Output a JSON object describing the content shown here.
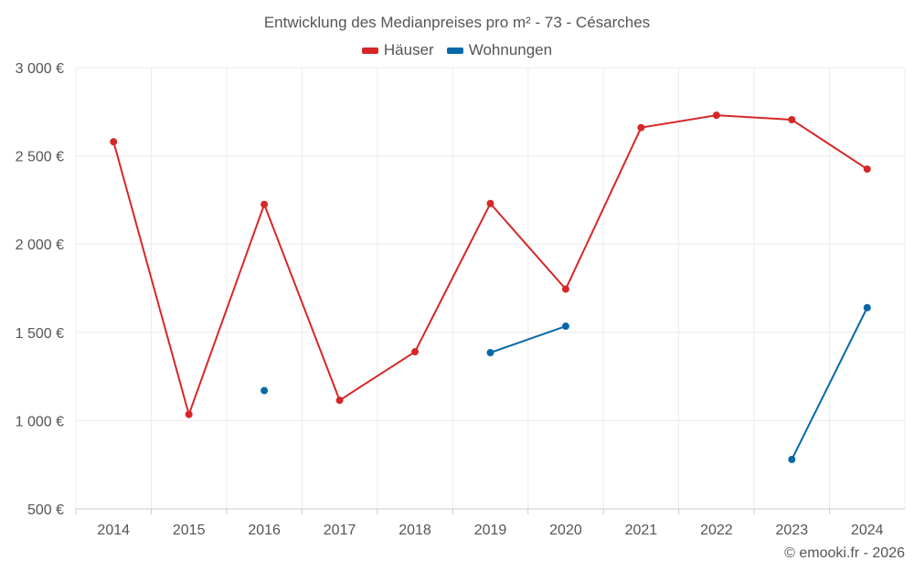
{
  "chart_data": {
    "type": "line",
    "title": "Entwicklung des Medianpreises pro m² - 73 - Césarches",
    "x": [
      "2014",
      "2015",
      "2016",
      "2017",
      "2018",
      "2019",
      "2020",
      "2021",
      "2022",
      "2023",
      "2024"
    ],
    "ylim": [
      500,
      3000
    ],
    "yticks": [
      500,
      1000,
      1500,
      2000,
      2500,
      3000
    ],
    "ytick_labels": [
      "500 €",
      "1 000 €",
      "1 500 €",
      "2 000 €",
      "2 500 €",
      "3 000 €"
    ],
    "grid": true,
    "legend_position": "top-center",
    "series": [
      {
        "name": "Häuser",
        "color": "#d62728",
        "values": [
          2580,
          1035,
          2225,
          1115,
          1390,
          2230,
          1745,
          2660,
          2730,
          2705,
          2425
        ]
      },
      {
        "name": "Wohnungen",
        "color": "#0868a8",
        "values": [
          null,
          null,
          1170,
          null,
          null,
          1385,
          1535,
          null,
          null,
          780,
          1640
        ]
      }
    ]
  },
  "credit": "© emooki.fr - 2026"
}
